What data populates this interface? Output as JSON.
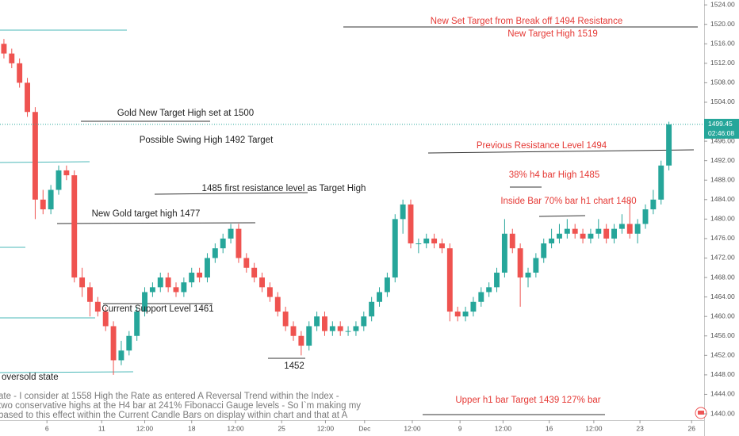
{
  "chart_data": {
    "type": "candlestick",
    "up_color": "#26a69a",
    "down_color": "#ef5350",
    "xlim": [
      0,
      90
    ],
    "xticks": [
      {
        "value": 6.0,
        "label": "6"
      },
      {
        "value": 13.0,
        "label": "11"
      },
      {
        "value": 18.5,
        "label": "12:00"
      },
      {
        "value": 24.5,
        "label": "18"
      },
      {
        "value": 30.1,
        "label": "12:00"
      },
      {
        "value": 36.0,
        "label": "25"
      },
      {
        "value": 41.6,
        "label": "12:00"
      },
      {
        "value": 46.6,
        "label": "Dec"
      },
      {
        "value": 52.7,
        "label": "12:00"
      },
      {
        "value": 58.8,
        "label": "9"
      },
      {
        "value": 64.3,
        "label": "12:00"
      },
      {
        "value": 70.2,
        "label": "16"
      },
      {
        "value": 75.9,
        "label": "12:00"
      },
      {
        "value": 81.8,
        "label": "23"
      },
      {
        "value": 88.4,
        "label": "26"
      }
    ],
    "ylim": [
      1438.7,
      1525.0
    ],
    "yticks": [
      {
        "value": 1440,
        "label": "1440.00"
      },
      {
        "value": 1444,
        "label": "1444.00"
      },
      {
        "value": 1448,
        "label": "1448.00"
      },
      {
        "value": 1452,
        "label": "1452.00"
      },
      {
        "value": 1456,
        "label": "1456.00"
      },
      {
        "value": 1460,
        "label": "1460.00"
      },
      {
        "value": 1464,
        "label": "1464.00"
      },
      {
        "value": 1468,
        "label": "1468.00"
      },
      {
        "value": 1472,
        "label": "1472.00"
      },
      {
        "value": 1476,
        "label": "1476.00"
      },
      {
        "value": 1480,
        "label": "1480.00"
      },
      {
        "value": 1484,
        "label": "1484.00"
      },
      {
        "value": 1488,
        "label": "1488.00"
      },
      {
        "value": 1492,
        "label": "1492.00"
      },
      {
        "value": 1496,
        "label": "1496.00"
      },
      {
        "value": 1500,
        "label": "1500.00"
      },
      {
        "value": 1504,
        "label": "1504.00"
      },
      {
        "value": 1508,
        "label": "1508.00"
      },
      {
        "value": 1512,
        "label": "1512.00"
      },
      {
        "value": 1516,
        "label": "1516.00"
      },
      {
        "value": 1520,
        "label": "1520.00"
      },
      {
        "value": 1524,
        "label": "1524.00"
      }
    ],
    "open": [
      1516,
      1514,
      1512,
      1508,
      1502,
      1484,
      1482,
      1486,
      1490,
      1489,
      1468,
      1466,
      1463,
      1461,
      1458,
      1451,
      1453,
      1456,
      1461,
      1465,
      1466,
      1468,
      1466,
      1465,
      1467,
      1469,
      1468,
      1472,
      1474,
      1476,
      1478,
      1472,
      1470,
      1468,
      1466,
      1464,
      1461,
      1458,
      1456,
      1454,
      1458,
      1460,
      1457,
      1458,
      1457,
      1457,
      1458,
      1460,
      1463,
      1465,
      1468,
      1480,
      1483,
      1475,
      1475,
      1476,
      1475,
      1474,
      1461,
      1460,
      1461,
      1463,
      1465,
      1466,
      1469,
      1477,
      1474,
      1468,
      1469,
      1472,
      1475,
      1476,
      1477,
      1478,
      1477,
      1476,
      1477,
      1478,
      1476,
      1478,
      1479,
      1477,
      1479,
      1482,
      1484,
      1491
    ],
    "high": [
      1517,
      1515,
      1513,
      1509,
      1503,
      1486,
      1487,
      1491,
      1491,
      1490,
      1470,
      1467,
      1464,
      1462,
      1459,
      1455,
      1457,
      1462,
      1466,
      1467,
      1469,
      1469,
      1467,
      1468,
      1470,
      1470,
      1473,
      1475,
      1477,
      1479,
      1479,
      1473,
      1471,
      1469,
      1467,
      1465,
      1462,
      1459,
      1457,
      1459,
      1461,
      1461,
      1459,
      1459,
      1458,
      1459,
      1461,
      1464,
      1466,
      1469,
      1481,
      1484,
      1484,
      1476,
      1477,
      1477,
      1476,
      1475,
      1462,
      1462,
      1464,
      1466,
      1467,
      1470,
      1480,
      1478,
      1475,
      1470,
      1473,
      1476,
      1478,
      1479,
      1480,
      1479,
      1478,
      1478,
      1480,
      1479,
      1479,
      1481,
      1484,
      1480,
      1483,
      1486,
      1492,
      1500
    ],
    "low": [
      1513,
      1511,
      1507,
      1501,
      1480,
      1481,
      1481,
      1485,
      1488,
      1467,
      1464,
      1460,
      1460,
      1457,
      1448,
      1450,
      1452,
      1455,
      1460,
      1464,
      1465,
      1465,
      1464,
      1464,
      1466,
      1467,
      1467,
      1471,
      1473,
      1475,
      1471,
      1469,
      1467,
      1465,
      1463,
      1460,
      1457,
      1455,
      1452,
      1453,
      1457,
      1456,
      1456,
      1456,
      1456,
      1456,
      1457,
      1459,
      1462,
      1464,
      1467,
      1477,
      1474,
      1473,
      1474,
      1474,
      1473,
      1459,
      1459,
      1459,
      1460,
      1462,
      1464,
      1465,
      1468,
      1473,
      1462,
      1466,
      1468,
      1471,
      1474,
      1475,
      1476,
      1476,
      1475,
      1475,
      1476,
      1475,
      1475,
      1477,
      1476,
      1475,
      1478,
      1481,
      1483,
      1490
    ],
    "close": [
      1514,
      1512,
      1508,
      1502,
      1484,
      1482,
      1486,
      1490,
      1489,
      1468,
      1466,
      1463,
      1461,
      1458,
      1451,
      1453,
      1456,
      1461,
      1465,
      1466,
      1468,
      1466,
      1465,
      1467,
      1469,
      1468,
      1472,
      1474,
      1476,
      1478,
      1472,
      1470,
      1468,
      1466,
      1464,
      1461,
      1458,
      1456,
      1454,
      1458,
      1460,
      1457,
      1458,
      1457,
      1457,
      1458,
      1460,
      1463,
      1465,
      1468,
      1480,
      1483,
      1475,
      1475,
      1476,
      1475,
      1474,
      1461,
      1460,
      1461,
      1463,
      1465,
      1466,
      1469,
      1477,
      1474,
      1468,
      1469,
      1472,
      1475,
      1476,
      1477,
      1478,
      1477,
      1476,
      1477,
      1478,
      1476,
      1478,
      1479,
      1477,
      1479,
      1482,
      1484,
      1491,
      1499.45
    ],
    "last_price": 1499.45,
    "countdown": "02:46:08",
    "annotations": [
      "New Set Target from Break off 1494 Resistance",
      "New Target High 1519",
      "Gold New Target High set at 1500",
      "Possible Swing High 1492 Target",
      "Previous Resistance Level 1494",
      "38% h4 bar High 1485",
      "1485 first resistance level as Target High",
      "Inside Bar 70% bar h1 chart 1480",
      "New Gold target high 1477",
      "Current Support Level 1461",
      "1452",
      "oversold state",
      "Upper h1 bar Target 1439 127% bar"
    ],
    "note_lines": [
      "ate - I consider at 1558 High the Rate as entered A Reversal Trend within the Index -",
      "two conservative highs at the H4 bar at 241% Fibonacci Gauge levels - So I`m making my",
      "based to this effect within the Current Candle Bars on display within chart and that at A"
    ]
  }
}
